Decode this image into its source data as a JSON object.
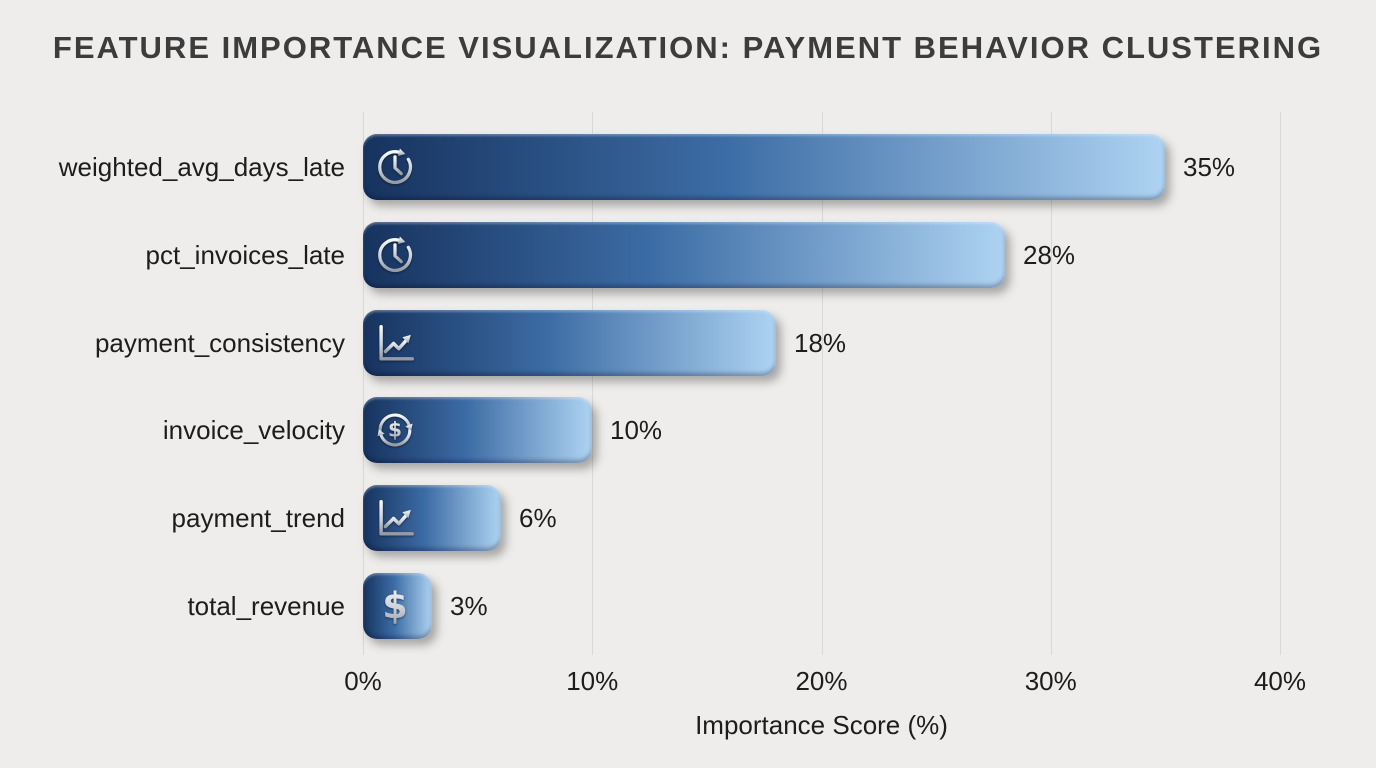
{
  "chart_data": {
    "type": "bar",
    "orientation": "horizontal",
    "title": "FEATURE IMPORTANCE VISUALIZATION: PAYMENT BEHAVIOR CLUSTERING",
    "xlabel": "Importance Score (%)",
    "xlim": [
      0,
      40
    ],
    "x_tick_values": [
      0,
      10,
      20,
      30,
      40
    ],
    "x_tick_labels": [
      "0%",
      "10%",
      "20%",
      "30%",
      "40%"
    ],
    "grid": "vertical",
    "legend": "none",
    "categories": [
      "weighted_avg_days_late",
      "pct_invoices_late",
      "payment_consistency",
      "invoice_velocity",
      "payment_trend",
      "total_revenue"
    ],
    "values": [
      35,
      28,
      18,
      10,
      6,
      3
    ],
    "value_labels": [
      "35%",
      "28%",
      "18%",
      "10%",
      "6%",
      "3%"
    ],
    "icons": [
      "clock-history-icon",
      "clock-history-icon",
      "chart-trend-up-icon",
      "dollar-refresh-icon",
      "chart-trend-up-icon",
      "dollar-icon"
    ],
    "colors": {
      "bar_gradient_start": "#17335f",
      "bar_gradient_mid": "#3c6ca5",
      "bar_gradient_end": "#aed3f2",
      "background": "#eeedeb",
      "gridline": "#d9d8d5",
      "text": "#1d1d1d",
      "title_text": "#3c3c3c",
      "icon_silver": "#dde1e6"
    }
  }
}
